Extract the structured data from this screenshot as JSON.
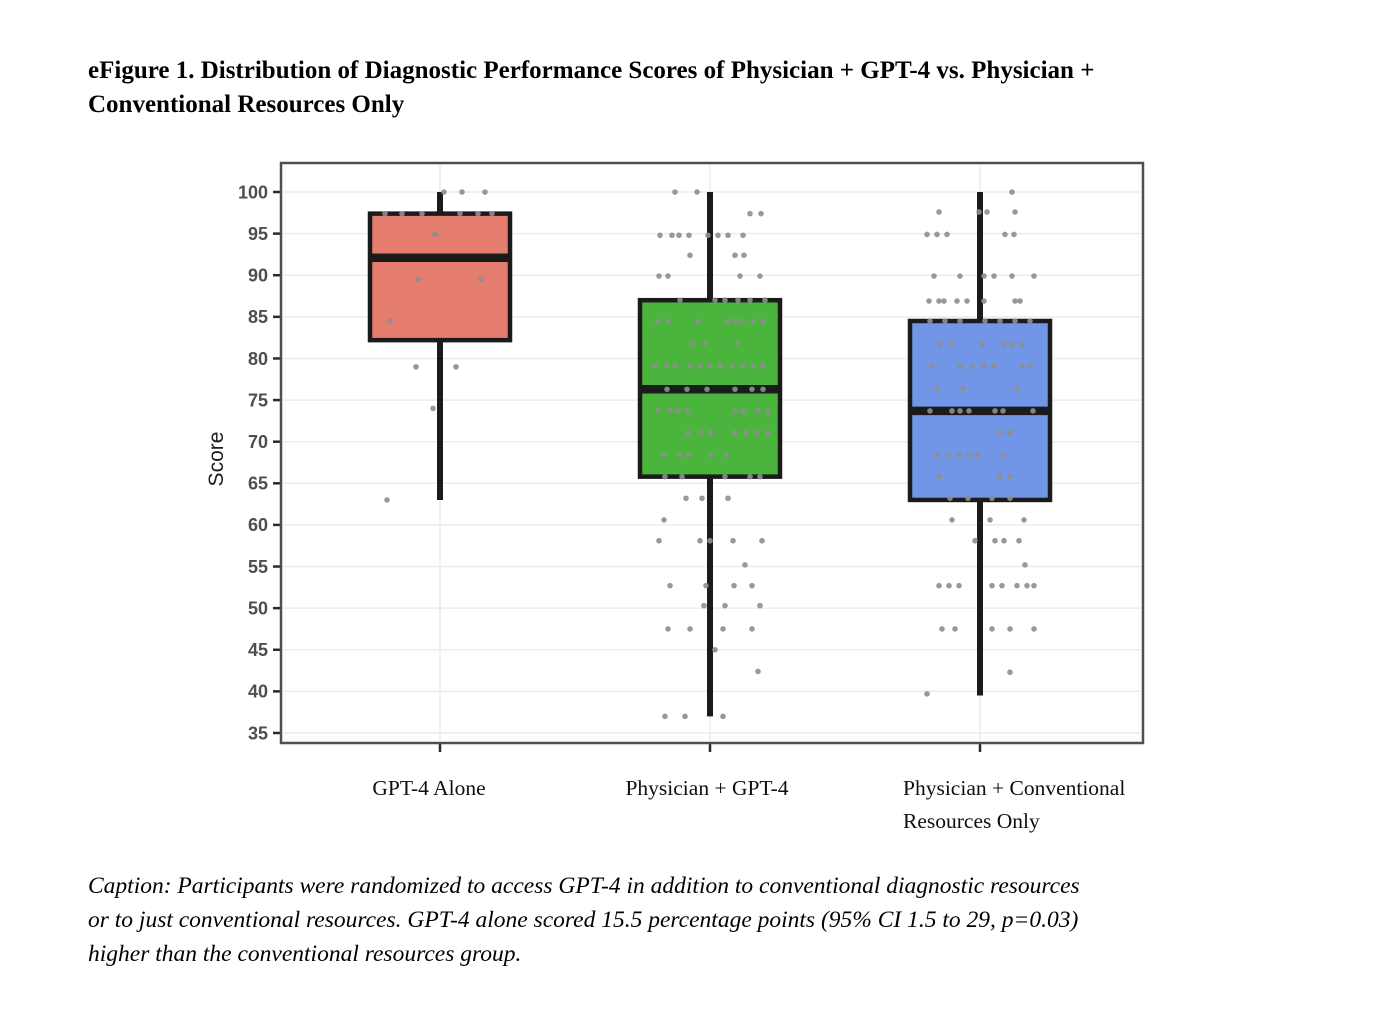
{
  "figure": {
    "title_lines": [
      "eFigure 1. Distribution of Diagnostic Performance Scores of Physician + GPT-4 vs. Physician +",
      "Conventional Resources Only"
    ],
    "caption_lines": [
      "Caption: Participants were randomized to access GPT-4 in addition to conventional diagnostic resources",
      "or to just conventional resources. GPT-4 alone scored 15.5 percentage points (95% CI 1.5 to 29, p=0.03)",
      "higher than the conventional resources group."
    ]
  },
  "chart_data": {
    "type": "box",
    "title": "",
    "xlabel": "",
    "ylabel": "Score",
    "ylim": [
      33.5,
      103.5
    ],
    "yticks": [
      35,
      40,
      45,
      50,
      55,
      60,
      65,
      70,
      75,
      80,
      85,
      90,
      95,
      100
    ],
    "grid": "light horizontal gridlines at each y tick plus faint vertical line at each group center",
    "legend": "none",
    "categories": [
      "GPT-4 Alone",
      "Physician + GPT-4",
      "Physician + Conventional Resources Only"
    ],
    "category_lines": [
      [
        "GPT-4 Alone"
      ],
      [
        "Physician + GPT-4"
      ],
      [
        "Physician + Conventional",
        "Resources Only"
      ]
    ],
    "style": {
      "frame": "#4f4f4f",
      "grid_color": "#ececec",
      "tick_color": "#2a2a2a",
      "box_stroke": "#1b1b1b",
      "point_color": "#8e8e8e"
    },
    "series": [
      {
        "name": "GPT-4 Alone",
        "color": "#e57d6e",
        "box": {
          "min": 63,
          "q1": 82.2,
          "median": 92.1,
          "q3": 97.4,
          "max": 100
        },
        "points": [
          [
            4,
            100
          ],
          [
            22,
            100
          ],
          [
            45,
            100
          ],
          [
            -55,
            97.4
          ],
          [
            -38,
            97.4
          ],
          [
            -18,
            97.4
          ],
          [
            20,
            97.4
          ],
          [
            38,
            97.4
          ],
          [
            52,
            97.4
          ],
          [
            -5,
            94.9
          ],
          [
            -22,
            89.5
          ],
          [
            41,
            89.5
          ],
          [
            -50,
            84.5
          ],
          [
            -24,
            79
          ],
          [
            16,
            79
          ],
          [
            -7,
            74
          ],
          [
            -53,
            63
          ]
        ]
      },
      {
        "name": "Physician + GPT-4",
        "color": "#4bb43c",
        "box": {
          "min": 37,
          "q1": 65.8,
          "median": 76.3,
          "q3": 87.0,
          "max": 100
        },
        "points": [
          [
            -35,
            100
          ],
          [
            -13,
            100
          ],
          [
            40,
            97.4
          ],
          [
            51,
            97.4
          ],
          [
            -50,
            94.8
          ],
          [
            -38,
            94.8
          ],
          [
            -31,
            94.8
          ],
          [
            -21,
            94.8
          ],
          [
            -2,
            94.8
          ],
          [
            8,
            94.8
          ],
          [
            18,
            94.8
          ],
          [
            33,
            94.8
          ],
          [
            -20,
            92.4
          ],
          [
            25,
            92.4
          ],
          [
            34,
            92.4
          ],
          [
            -51,
            89.9
          ],
          [
            -42,
            89.9
          ],
          [
            30,
            89.9
          ],
          [
            50,
            89.9
          ],
          [
            -30,
            87
          ],
          [
            5,
            87
          ],
          [
            15,
            87
          ],
          [
            28,
            87
          ],
          [
            40,
            87
          ],
          [
            55,
            87
          ],
          [
            -53,
            84.5
          ],
          [
            -42,
            84.5
          ],
          [
            -12,
            84.5
          ],
          [
            18,
            84.5
          ],
          [
            25,
            84.5
          ],
          [
            32,
            84.5
          ],
          [
            43,
            84.5
          ],
          [
            53,
            84.5
          ],
          [
            -17,
            81.8
          ],
          [
            -5,
            81.8
          ],
          [
            27,
            81.8
          ],
          [
            -55,
            79.1
          ],
          [
            -43,
            79.1
          ],
          [
            -35,
            79.1
          ],
          [
            -20,
            79.1
          ],
          [
            -10,
            79.1
          ],
          [
            0,
            79.1
          ],
          [
            10,
            79.1
          ],
          [
            22,
            79.1
          ],
          [
            32,
            79.1
          ],
          [
            43,
            79.1
          ],
          [
            53,
            79.1
          ],
          [
            -43,
            76.3
          ],
          [
            -23,
            76.3
          ],
          [
            -3,
            76.3
          ],
          [
            25,
            76.3
          ],
          [
            42,
            76.3
          ],
          [
            53,
            76.3
          ],
          [
            -52,
            73.7
          ],
          [
            -40,
            73.7
          ],
          [
            -32,
            73.7
          ],
          [
            -23,
            73.7
          ],
          [
            25,
            73.7
          ],
          [
            33,
            73.7
          ],
          [
            48,
            73.7
          ],
          [
            58,
            73.7
          ],
          [
            -22,
            71.1
          ],
          [
            -9,
            71.1
          ],
          [
            1,
            71.1
          ],
          [
            25,
            71.1
          ],
          [
            36,
            71.1
          ],
          [
            47,
            71.1
          ],
          [
            58,
            71.1
          ],
          [
            -46,
            68.4
          ],
          [
            -30,
            68.4
          ],
          [
            -22,
            68.4
          ],
          [
            1,
            68.4
          ],
          [
            16,
            68.4
          ],
          [
            -45,
            65.8
          ],
          [
            -28,
            65.8
          ],
          [
            15,
            65.8
          ],
          [
            40,
            65.8
          ],
          [
            50,
            65.8
          ],
          [
            -24,
            63.2
          ],
          [
            -8,
            63.2
          ],
          [
            18,
            63.2
          ],
          [
            -46,
            60.6
          ],
          [
            -51,
            58.1
          ],
          [
            -10,
            58.1
          ],
          [
            0,
            58.1
          ],
          [
            23,
            58.1
          ],
          [
            52,
            58.1
          ],
          [
            35,
            55.2
          ],
          [
            -40,
            52.7
          ],
          [
            -4,
            52.7
          ],
          [
            24,
            52.7
          ],
          [
            42,
            52.7
          ],
          [
            -6,
            50.3
          ],
          [
            15,
            50.3
          ],
          [
            50,
            50.3
          ],
          [
            -42,
            47.5
          ],
          [
            -20,
            47.5
          ],
          [
            13,
            47.5
          ],
          [
            42,
            47.5
          ],
          [
            5,
            45
          ],
          [
            48,
            42.4
          ],
          [
            -45,
            37
          ],
          [
            -25,
            37
          ],
          [
            13,
            37
          ]
        ]
      },
      {
        "name": "Physician + Conventional Resources Only",
        "color": "#7196e8",
        "box": {
          "min": 39.5,
          "q1": 63.0,
          "median": 73.7,
          "q3": 84.5,
          "max": 100
        },
        "points": [
          [
            32,
            100
          ],
          [
            -41,
            97.6
          ],
          [
            -1,
            97.6
          ],
          [
            7,
            97.6
          ],
          [
            35,
            97.6
          ],
          [
            -53,
            94.9
          ],
          [
            -43,
            94.9
          ],
          [
            -33,
            94.9
          ],
          [
            25,
            94.9
          ],
          [
            34,
            94.9
          ],
          [
            -46,
            89.9
          ],
          [
            -20,
            89.9
          ],
          [
            4,
            89.9
          ],
          [
            14,
            89.9
          ],
          [
            32,
            89.9
          ],
          [
            54,
            89.9
          ],
          [
            -51,
            86.9
          ],
          [
            -41,
            86.9
          ],
          [
            -36,
            86.9
          ],
          [
            -23,
            86.9
          ],
          [
            -13,
            86.9
          ],
          [
            4,
            86.9
          ],
          [
            35,
            86.9
          ],
          [
            40,
            86.9
          ],
          [
            -50,
            84.5
          ],
          [
            -35,
            84.5
          ],
          [
            -20,
            84.5
          ],
          [
            5,
            84.5
          ],
          [
            20,
            84.5
          ],
          [
            35,
            84.5
          ],
          [
            50,
            84.5
          ],
          [
            -40,
            81.7
          ],
          [
            -28,
            81.7
          ],
          [
            2,
            81.7
          ],
          [
            24,
            81.7
          ],
          [
            32,
            81.7
          ],
          [
            42,
            81.7
          ],
          [
            -48,
            79.1
          ],
          [
            -20,
            79.1
          ],
          [
            -8,
            79.1
          ],
          [
            4,
            79.1
          ],
          [
            14,
            79.1
          ],
          [
            42,
            79.1
          ],
          [
            50,
            79.1
          ],
          [
            -43,
            76.4
          ],
          [
            -17,
            76.4
          ],
          [
            37,
            76.4
          ],
          [
            -50,
            73.7
          ],
          [
            -28,
            73.7
          ],
          [
            -20,
            73.7
          ],
          [
            -11,
            73.7
          ],
          [
            15,
            73.7
          ],
          [
            23,
            73.7
          ],
          [
            53,
            73.7
          ],
          [
            20,
            71.1
          ],
          [
            30,
            71.1
          ],
          [
            -43,
            68.4
          ],
          [
            -31,
            68.4
          ],
          [
            -21,
            68.4
          ],
          [
            -11,
            68.4
          ],
          [
            -3,
            68.4
          ],
          [
            23,
            68.4
          ],
          [
            -41,
            65.8
          ],
          [
            20,
            65.8
          ],
          [
            30,
            65.8
          ],
          [
            -30,
            63.2
          ],
          [
            -12,
            63.2
          ],
          [
            12,
            63.2
          ],
          [
            30,
            63.2
          ],
          [
            -28,
            60.6
          ],
          [
            10,
            60.6
          ],
          [
            44,
            60.6
          ],
          [
            -5,
            58.1
          ],
          [
            15,
            58.1
          ],
          [
            24,
            58.1
          ],
          [
            39,
            58.1
          ],
          [
            45,
            55.2
          ],
          [
            -41,
            52.7
          ],
          [
            -31,
            52.7
          ],
          [
            -21,
            52.7
          ],
          [
            12,
            52.7
          ],
          [
            22,
            52.7
          ],
          [
            37,
            52.7
          ],
          [
            47,
            52.7
          ],
          [
            54,
            52.7
          ],
          [
            -38,
            47.5
          ],
          [
            -25,
            47.5
          ],
          [
            12,
            47.5
          ],
          [
            30,
            47.5
          ],
          [
            54,
            47.5
          ],
          [
            30,
            42.3
          ],
          [
            -53,
            39.7
          ]
        ]
      }
    ]
  }
}
